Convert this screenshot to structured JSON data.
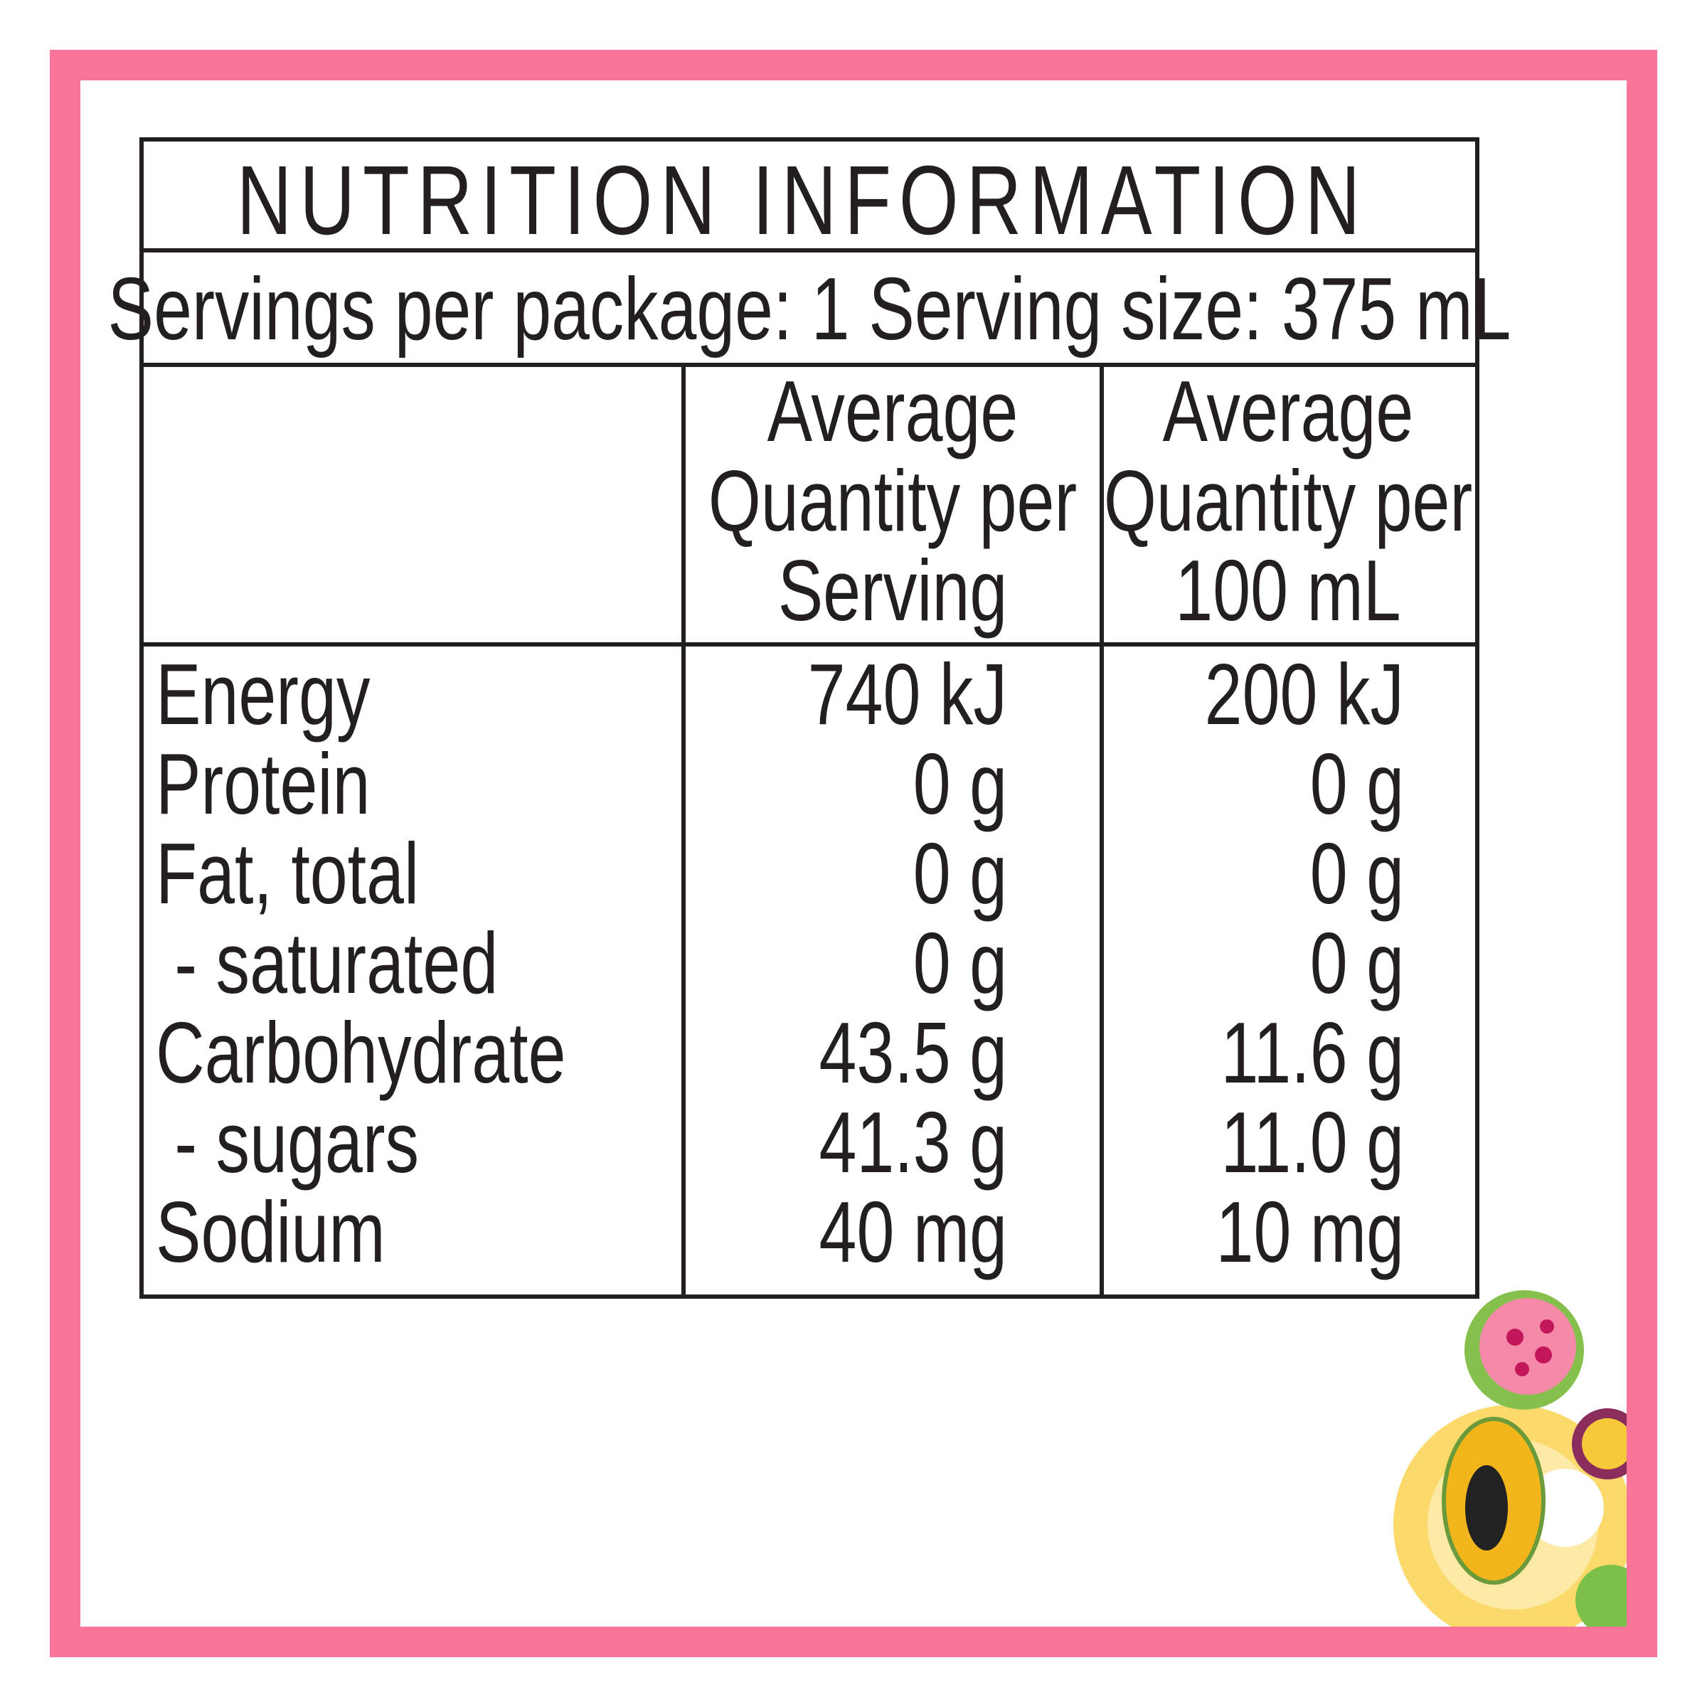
{
  "header": {
    "title": "NUTRITION INFORMATION",
    "servings": "Servings per package: 1 Serving size: 375 mL"
  },
  "table": {
    "columns": [
      [
        "Average",
        "Quantity per",
        "Serving"
      ],
      [
        "Average",
        "Quantity per",
        "100 mL"
      ]
    ],
    "rows": [
      [
        "Energy",
        "740 kJ",
        "200 kJ"
      ],
      [
        "Protein",
        "0 g",
        "0 g"
      ],
      [
        "Fat, total",
        "0 g",
        "0 g"
      ],
      [
        " - saturated",
        "0 g",
        "0 g"
      ],
      [
        "Carbohydrate",
        "43.5 g",
        "11.6 g"
      ],
      [
        " - sugars",
        "41.3 g",
        "11.0 g"
      ],
      [
        "Sodium",
        "40 mg",
        "10 mg"
      ]
    ]
  }
}
